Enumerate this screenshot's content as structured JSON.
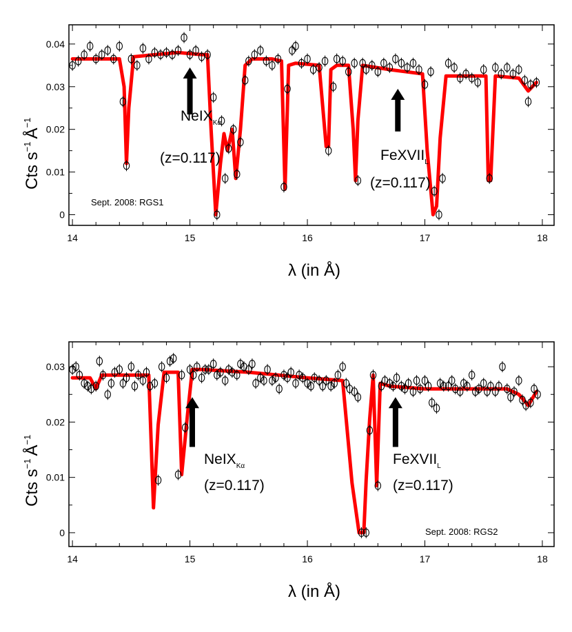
{
  "chart_data": [
    {
      "type": "scatter",
      "title": "",
      "xlabel": "λ (in Å)",
      "ylabel": "Cts s",
      "ylabel_sup1": "−1",
      "ylabel_tail": "Å",
      "ylabel_sup2": "−1",
      "xlim": [
        13.97,
        18.1
      ],
      "ylim": [
        -0.0025,
        0.0445
      ],
      "xticks": [
        14,
        15,
        16,
        17,
        18
      ],
      "yticks": [
        0,
        0.01,
        0.02,
        0.03,
        0.04
      ],
      "ytick_labels": [
        "0",
        "0.01",
        "0.02",
        "0.03",
        "0.04"
      ],
      "corner_label": "Sept. 2008: RGS1",
      "annotations": [
        {
          "line_id": "NeIX",
          "sub": "Kα",
          "z_text": "(z=0.117)",
          "x": 15.0,
          "arrow_top": 0.0345,
          "arrow_bottom": 0.0235
        },
        {
          "line_id": "FeXVII",
          "sub": "L",
          "z_text": "(z=0.117)",
          "x": 16.77,
          "arrow_top": 0.0295,
          "arrow_bottom": 0.0195
        }
      ],
      "series": [
        {
          "name": "data",
          "color": "#000000",
          "x": [
            14.0,
            14.05,
            14.1,
            14.15,
            14.2,
            14.25,
            14.3,
            14.35,
            14.4,
            14.43,
            14.46,
            14.5,
            14.55,
            14.6,
            14.65,
            14.7,
            14.75,
            14.8,
            14.85,
            14.9,
            14.95,
            15.0,
            15.05,
            15.1,
            15.15,
            15.2,
            15.23,
            15.27,
            15.3,
            15.33,
            15.37,
            15.4,
            15.43,
            15.47,
            15.5,
            15.55,
            15.6,
            15.65,
            15.7,
            15.75,
            15.8,
            15.83,
            15.87,
            15.9,
            15.95,
            16.0,
            16.05,
            16.1,
            16.15,
            16.18,
            16.22,
            16.25,
            16.3,
            16.35,
            16.4,
            16.43,
            16.47,
            16.5,
            16.55,
            16.6,
            16.65,
            16.7,
            16.75,
            16.8,
            16.85,
            16.9,
            16.95,
            17.0,
            17.05,
            17.08,
            17.12,
            17.15,
            17.2,
            17.25,
            17.3,
            17.35,
            17.4,
            17.45,
            17.5,
            17.55,
            17.6,
            17.65,
            17.7,
            17.75,
            17.8,
            17.85,
            17.88,
            17.9,
            17.95
          ],
          "y": [
            0.035,
            0.036,
            0.0375,
            0.0395,
            0.0365,
            0.0375,
            0.0385,
            0.0365,
            0.0395,
            0.0265,
            0.0115,
            0.0365,
            0.035,
            0.039,
            0.0365,
            0.038,
            0.0375,
            0.038,
            0.0375,
            0.0385,
            0.0415,
            0.0375,
            0.0385,
            0.037,
            0.0375,
            0.0275,
            0.0,
            0.022,
            0.0085,
            0.0155,
            0.02,
            0.0095,
            0.017,
            0.0315,
            0.036,
            0.0375,
            0.0385,
            0.036,
            0.035,
            0.0365,
            0.0065,
            0.0295,
            0.0385,
            0.0395,
            0.0355,
            0.0365,
            0.034,
            0.0345,
            0.036,
            0.015,
            0.03,
            0.0365,
            0.036,
            0.0335,
            0.0355,
            0.008,
            0.0355,
            0.034,
            0.035,
            0.0335,
            0.0355,
            0.0345,
            0.0365,
            0.0355,
            0.0345,
            0.0355,
            0.034,
            0.0305,
            0.0335,
            0.0055,
            0.0,
            0.0085,
            0.0355,
            0.0345,
            0.032,
            0.033,
            0.032,
            0.031,
            0.034,
            0.0085,
            0.0345,
            0.033,
            0.0345,
            0.033,
            0.034,
            0.0315,
            0.0265,
            0.0305,
            0.031
          ]
        },
        {
          "name": "model",
          "color": "#ff0000",
          "x": [
            14.0,
            14.2,
            14.4,
            14.44,
            14.46,
            14.48,
            14.52,
            14.7,
            14.9,
            15.1,
            15.15,
            15.18,
            15.22,
            15.26,
            15.29,
            15.32,
            15.36,
            15.39,
            15.43,
            15.47,
            15.53,
            15.7,
            15.78,
            15.81,
            15.84,
            15.9,
            16.1,
            16.16,
            16.18,
            16.2,
            16.25,
            16.35,
            16.39,
            16.41,
            16.43,
            16.47,
            16.7,
            16.98,
            17.02,
            17.07,
            17.1,
            17.13,
            17.18,
            17.35,
            17.52,
            17.54,
            17.56,
            17.6,
            17.8,
            17.88,
            17.95
          ],
          "y": [
            0.0365,
            0.0365,
            0.0365,
            0.03,
            0.012,
            0.025,
            0.037,
            0.0375,
            0.038,
            0.0375,
            0.0375,
            0.02,
            0.0,
            0.012,
            0.019,
            0.015,
            0.02,
            0.0085,
            0.02,
            0.035,
            0.0365,
            0.0365,
            0.036,
            0.006,
            0.035,
            0.0355,
            0.035,
            0.016,
            0.016,
            0.034,
            0.035,
            0.035,
            0.02,
            0.008,
            0.022,
            0.035,
            0.034,
            0.033,
            0.015,
            0.0,
            0.002,
            0.018,
            0.0325,
            0.0325,
            0.0325,
            0.008,
            0.008,
            0.0325,
            0.032,
            0.029,
            0.031
          ]
        }
      ]
    },
    {
      "type": "scatter",
      "title": "",
      "xlabel": "λ (in Å)",
      "ylabel": "Cts s",
      "ylabel_sup1": "−1",
      "ylabel_tail": "Å",
      "ylabel_sup2": "−1",
      "xlim": [
        13.97,
        18.1
      ],
      "ylim": [
        -0.0025,
        0.0345
      ],
      "xticks": [
        14,
        15,
        16,
        17,
        18
      ],
      "yticks": [
        0,
        0.01,
        0.02,
        0.03
      ],
      "ytick_labels": [
        "0",
        "0.01",
        "0.02",
        "0.03"
      ],
      "corner_label": "Sept. 2008: RGS2",
      "annotations": [
        {
          "line_id": "NeIX",
          "sub": "Kα",
          "z_text": "(z=0.117)",
          "x": 15.02,
          "arrow_top": 0.0245,
          "arrow_bottom": 0.0155
        },
        {
          "line_id": "FeXVII",
          "sub": "L",
          "z_text": "(z=0.117)",
          "x": 16.75,
          "arrow_top": 0.0245,
          "arrow_bottom": 0.0155
        }
      ],
      "series": [
        {
          "name": "data",
          "color": "#000000",
          "x": [
            14.0,
            14.03,
            14.06,
            14.1,
            14.13,
            14.16,
            14.2,
            14.23,
            14.26,
            14.3,
            14.33,
            14.36,
            14.4,
            14.43,
            14.46,
            14.5,
            14.53,
            14.56,
            14.6,
            14.63,
            14.66,
            14.7,
            14.73,
            14.76,
            14.8,
            14.83,
            14.86,
            14.9,
            14.93,
            14.96,
            15.0,
            15.03,
            15.06,
            15.1,
            15.13,
            15.16,
            15.2,
            15.23,
            15.26,
            15.3,
            15.33,
            15.36,
            15.4,
            15.43,
            15.46,
            15.5,
            15.53,
            15.56,
            15.6,
            15.63,
            15.66,
            15.7,
            15.73,
            15.76,
            15.8,
            15.83,
            15.86,
            15.9,
            15.93,
            15.96,
            16.0,
            16.03,
            16.06,
            16.1,
            16.13,
            16.16,
            16.2,
            16.23,
            16.26,
            16.3,
            16.33,
            16.36,
            16.4,
            16.43,
            16.46,
            16.5,
            16.53,
            16.56,
            16.6,
            16.63,
            16.66,
            16.7,
            16.73,
            16.76,
            16.8,
            16.83,
            16.86,
            16.9,
            16.93,
            16.96,
            17.0,
            17.03,
            17.06,
            17.1,
            17.13,
            17.16,
            17.2,
            17.23,
            17.26,
            17.3,
            17.33,
            17.36,
            17.4,
            17.43,
            17.46,
            17.5,
            17.53,
            17.56,
            17.6,
            17.63,
            17.66,
            17.7,
            17.73,
            17.76,
            17.8,
            17.83,
            17.86,
            17.9,
            17.93,
            17.96
          ],
          "y": [
            0.0295,
            0.03,
            0.0285,
            0.027,
            0.0265,
            0.026,
            0.0265,
            0.031,
            0.0285,
            0.025,
            0.027,
            0.029,
            0.0295,
            0.027,
            0.028,
            0.03,
            0.0265,
            0.0285,
            0.0275,
            0.029,
            0.0265,
            0.027,
            0.0095,
            0.03,
            0.028,
            0.031,
            0.0315,
            0.0105,
            0.0285,
            0.019,
            0.0295,
            0.0285,
            0.03,
            0.028,
            0.0295,
            0.0295,
            0.0305,
            0.0285,
            0.029,
            0.0275,
            0.0295,
            0.029,
            0.0285,
            0.0305,
            0.03,
            0.0295,
            0.0305,
            0.027,
            0.028,
            0.0275,
            0.0295,
            0.0275,
            0.028,
            0.026,
            0.0285,
            0.028,
            0.029,
            0.027,
            0.0285,
            0.028,
            0.027,
            0.0265,
            0.028,
            0.0275,
            0.0265,
            0.0275,
            0.0265,
            0.027,
            0.0285,
            0.03,
            0.027,
            0.026,
            0.0255,
            0.0245,
            0.0,
            0.0,
            0.0185,
            0.0285,
            0.0085,
            0.0265,
            0.0275,
            0.027,
            0.0265,
            0.028,
            0.0265,
            0.026,
            0.027,
            0.0255,
            0.0275,
            0.026,
            0.0275,
            0.0265,
            0.0235,
            0.0225,
            0.027,
            0.0265,
            0.0265,
            0.0275,
            0.026,
            0.0255,
            0.027,
            0.0265,
            0.0285,
            0.0255,
            0.026,
            0.027,
            0.0255,
            0.0265,
            0.0255,
            0.0265,
            0.03,
            0.026,
            0.0245,
            0.0255,
            0.0275,
            0.024,
            0.023,
            0.0235,
            0.026,
            0.025
          ]
        },
        {
          "name": "model",
          "color": "#ff0000",
          "x": [
            14.0,
            14.15,
            14.2,
            14.25,
            14.6,
            14.65,
            14.69,
            14.73,
            14.78,
            14.85,
            14.9,
            14.93,
            14.98,
            15.02,
            15.1,
            15.5,
            16.0,
            16.3,
            16.38,
            16.44,
            16.48,
            16.5,
            16.53,
            16.56,
            16.59,
            16.62,
            16.7,
            17.0,
            17.5,
            17.7,
            17.8,
            17.88,
            17.95
          ],
          "y": [
            0.028,
            0.028,
            0.026,
            0.0285,
            0.0285,
            0.0285,
            0.0045,
            0.0195,
            0.029,
            0.029,
            0.029,
            0.0105,
            0.0215,
            0.0295,
            0.0295,
            0.029,
            0.028,
            0.0275,
            0.009,
            0.0,
            0.0,
            0.0095,
            0.0205,
            0.0285,
            0.0085,
            0.027,
            0.0265,
            0.026,
            0.026,
            0.026,
            0.025,
            0.023,
            0.0255
          ]
        }
      ]
    }
  ]
}
